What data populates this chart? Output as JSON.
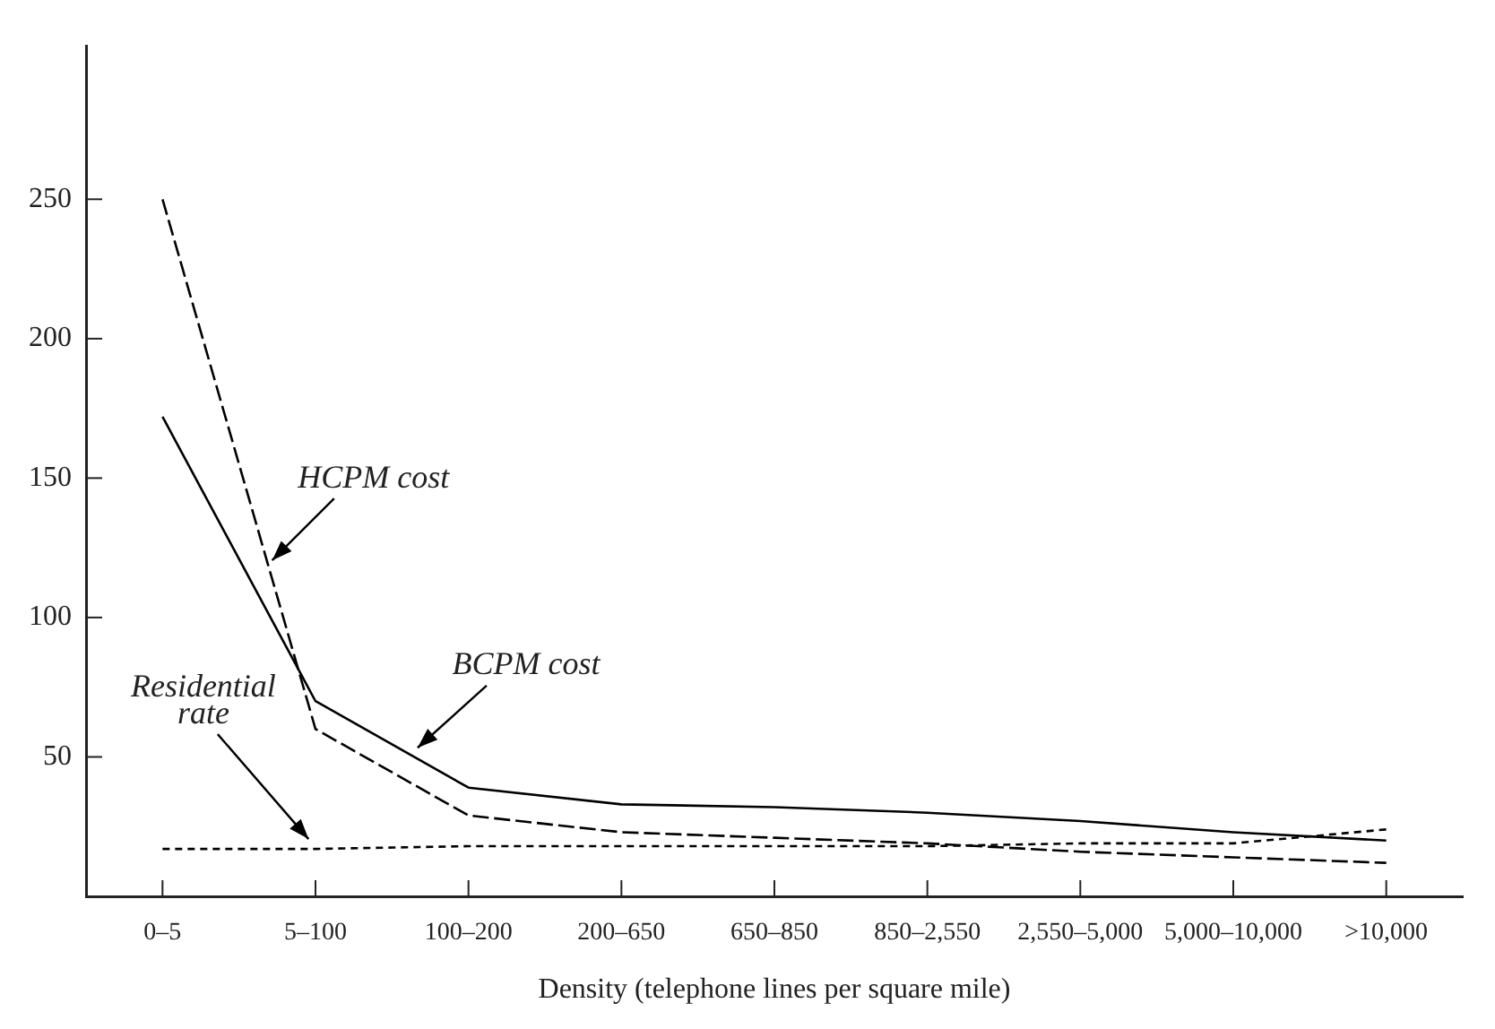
{
  "chart_data": {
    "type": "line",
    "categories": [
      "0–5",
      "5–100",
      "100–200",
      "200–650",
      "650–850",
      "850–2,550",
      "2,550–5,000",
      "5,000–10,000",
      ">10,000"
    ],
    "xlabel": "Density (telephone lines per square mile)",
    "ylim": [
      0,
      305
    ],
    "yticks": [
      50,
      100,
      150,
      200,
      250
    ],
    "marker": "none",
    "series": [
      {
        "name": "HCPM cost",
        "color": "#000000",
        "line_style": "dashed",
        "values": [
          250,
          60,
          29,
          23,
          21,
          19,
          16,
          14,
          12
        ]
      },
      {
        "name": "BCPM cost",
        "color": "#000000",
        "line_style": "solid",
        "values": [
          172,
          70,
          39,
          33,
          32,
          30,
          27,
          23,
          20
        ]
      },
      {
        "name": "Residential rate",
        "color": "#000000",
        "line_style": "dotted",
        "values": [
          17,
          17,
          18,
          18,
          18,
          18,
          19,
          19,
          24
        ]
      }
    ]
  }
}
